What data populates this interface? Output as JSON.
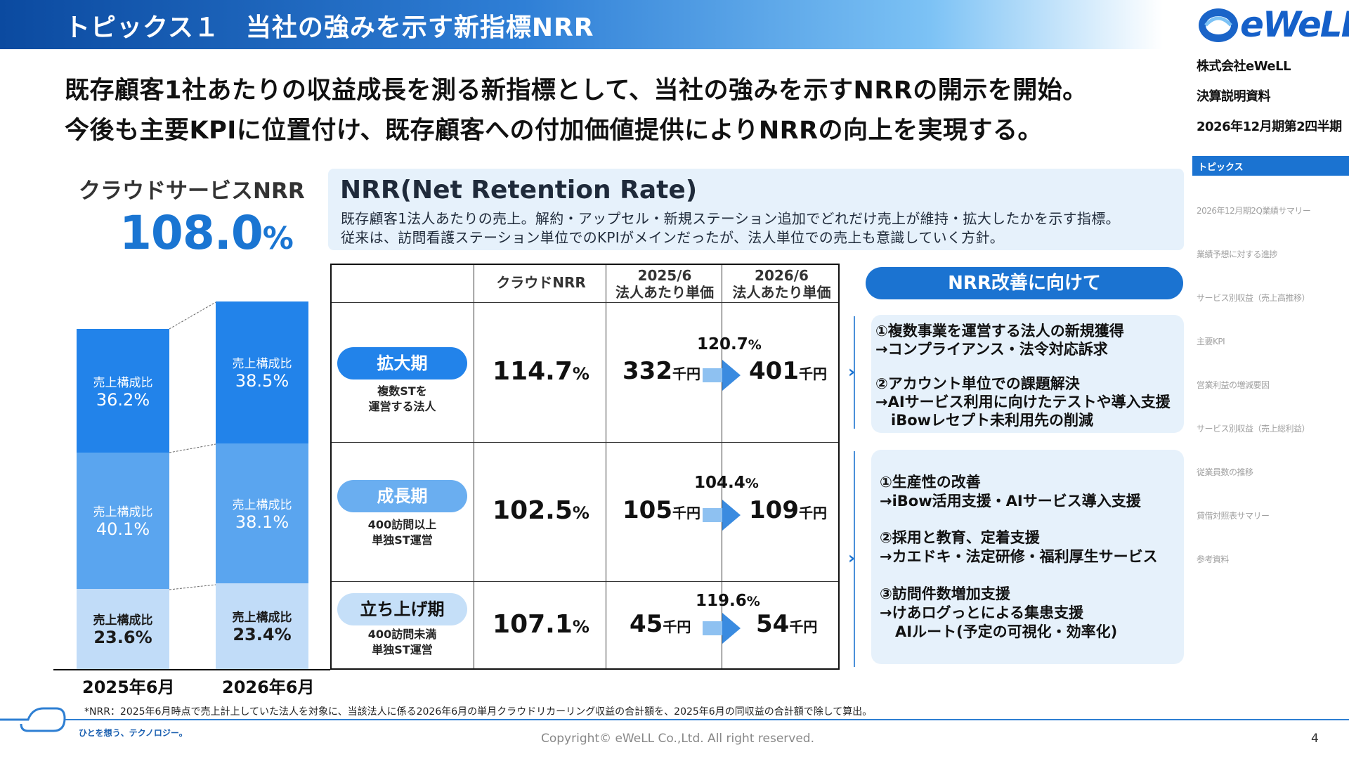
{
  "header": {
    "title": "トピックス１　当社の強みを示す新指標NRR",
    "logo_text": "eWeLL",
    "company": "株式会社eWeLL",
    "doc_type": "決算説明資料",
    "period": "2026年12月期第2四半期"
  },
  "lead": {
    "line1": "既存顧客1社あたりの収益成長を測る新指標として、当社の強みを示すNRRの開示を開始。",
    "line2": "今後も主要KPIに位置付け、既存顧客への付加価値提供によりNRRの向上を実現する。"
  },
  "nav": {
    "active": "トピックス",
    "items": [
      "2026年12月期2Q業績サマリー",
      "業績予想に対する進捗",
      "サービス別収益（売上高推移）",
      "主要KPI",
      "営業利益の増減要因",
      "サービス別収益（売上総利益）",
      "従業員数の推移",
      "貸借対照表サマリー",
      "参考資料"
    ]
  },
  "nrr_summary": {
    "label": "クラウドサービスNRR",
    "value": "108.0",
    "unit": "%"
  },
  "chart_data": {
    "type": "bar",
    "stacked": true,
    "categories": [
      "2025年6月",
      "2026年6月"
    ],
    "series": [
      {
        "name": "",
        "values": [
          23.6,
          23.4
        ],
        "labels": [
          "売上構成比",
          "売上構成比"
        ],
        "color": "#c1dcf8"
      },
      {
        "name": "",
        "values": [
          40.1,
          38.1
        ],
        "labels": [
          "売上構成比",
          "売上構成比"
        ],
        "color": "#5aa5ef"
      },
      {
        "name": "",
        "values": [
          36.2,
          38.5
        ],
        "labels": [
          "売上構成比",
          "売上構成比"
        ],
        "color": "#2283ea"
      }
    ],
    "totals_relative": [
      1.0,
      1.08
    ],
    "xlabel": "",
    "ylabel": ""
  },
  "definition": {
    "title": "NRR(Net Retention Rate)",
    "line1": "既存顧客1法人あたりの売上。解約・アップセル・新規ステーション追加でどれだけ売上が維持・拡大したかを示す指標。",
    "line2": "従来は、訪問看護ステーション単位でのKPIがメインだったが、法人単位での売上も意識していく方針。"
  },
  "table": {
    "headers": {
      "nrr": "クラウドNRR",
      "y2025_l1": "2025/6",
      "y2025_l2": "法人あたり単価",
      "y2026_l1": "2026/6",
      "y2026_l2": "法人あたり単価"
    },
    "rows": [
      {
        "stage": "拡大期",
        "sub1": "複数STを",
        "sub2": "運営する法人",
        "nrr": "114.7",
        "growth": "120.7",
        "before": "332",
        "after": "401"
      },
      {
        "stage": "成長期",
        "sub1": "400訪問以上",
        "sub2": "単独ST運営",
        "nrr": "102.5",
        "growth": "104.4",
        "before": "105",
        "after": "109"
      },
      {
        "stage": "立ち上げ期",
        "sub1": "400訪問未満",
        "sub2": "単独ST運営",
        "nrr": "107.1",
        "growth": "119.6",
        "before": "45",
        "after": "54"
      }
    ],
    "pct": "%",
    "money_unit": "千円"
  },
  "improvement": {
    "title": "NRR改善に向けて",
    "box1": [
      "①複数事業を運営する法人の新規獲得",
      "→コンプライアンス・法令対応訴求",
      "②アカウント単位での課題解決",
      "→AIサービス利用に向けたテストや導入支援",
      "iBowレセプト未利用先の削減"
    ],
    "box2": [
      "①生産性の改善",
      "→iBow活用支援・AIサービス導入支援",
      "②採用と教育、定着支援",
      "→カエドキ・法定研修・福利厚生サービス",
      "③訪問件数増加支援",
      "→けあログっとによる集患支援",
      "AIルート(予定の可視化・効率化)"
    ]
  },
  "footer": {
    "note": "*NRR：2025年6月時点で売上計上していた法人を対象に、当該法人に係る2026年6月の単月クラウドリカーリング収益の合計額を、2025年6月の同収益の合計額で除して算出。",
    "slogan": "ひとを想う、テクノロジー。",
    "copyright": "Copyright© eWeLL Co.,Ltd. All right reserved.",
    "page": "4"
  }
}
